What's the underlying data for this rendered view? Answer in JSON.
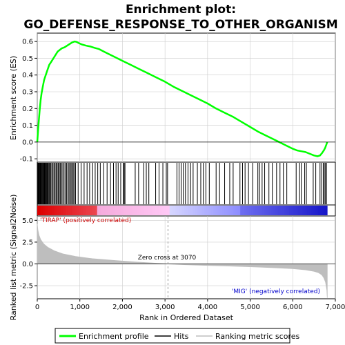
{
  "chart_data": {
    "type": "line",
    "title_line1": "Enrichment plot:",
    "title_line2": "GO_DEFENSE_RESPONSE_TO_OTHER_ORGANISM",
    "xlabel": "Rank in Ordered Dataset",
    "ylabel_top": "Enrichment score (ES)",
    "ylabel_bottom": "Ranked list metric (Signal2Noise)",
    "xlim": [
      0,
      7000
    ],
    "es_ylim": [
      -0.12,
      0.65
    ],
    "metric_ylim": [
      -4.0,
      5.5
    ],
    "x_ticks": [
      0,
      1000,
      2000,
      3000,
      4000,
      5000,
      6000,
      7000
    ],
    "x_tick_labels": [
      "0",
      "1,000",
      "2,000",
      "3,000",
      "4,000",
      "5,000",
      "6,000",
      "7,000"
    ],
    "es_ticks": [
      0.6,
      0.5,
      0.4,
      0.3,
      0.2,
      0.1,
      0.0,
      -0.1
    ],
    "es_tick_labels": [
      "0.6",
      "0.5",
      "0.4",
      "0.3",
      "0.2",
      "0.1",
      "0.0",
      "-0.1"
    ],
    "metric_ticks": [
      5.0,
      2.5,
      0.0,
      -2.5
    ],
    "metric_tick_labels": [
      "5.0",
      "2.5",
      "0.0",
      "-2.5"
    ],
    "total_ranks": 6810,
    "zero_cross_rank": 3070,
    "series": [
      {
        "name": "Enrichment profile",
        "color": "#00ff00",
        "x": [
          0,
          20,
          40,
          60,
          80,
          100,
          130,
          160,
          200,
          240,
          280,
          330,
          380,
          430,
          480,
          530,
          580,
          640,
          700,
          760,
          820,
          880,
          920,
          980,
          1050,
          1150,
          1250,
          1350,
          1450,
          1600,
          1800,
          2000,
          2200,
          2400,
          2600,
          2800,
          3000,
          3200,
          3400,
          3600,
          3800,
          4000,
          4200,
          4400,
          4600,
          4800,
          5000,
          5200,
          5400,
          5600,
          5800,
          6000,
          6100,
          6200,
          6300,
          6400,
          6500,
          6580,
          6640,
          6690,
          6730,
          6760,
          6790,
          6810
        ],
        "y": [
          0.0,
          0.07,
          0.14,
          0.2,
          0.25,
          0.29,
          0.33,
          0.37,
          0.4,
          0.43,
          0.46,
          0.48,
          0.5,
          0.52,
          0.54,
          0.55,
          0.56,
          0.565,
          0.575,
          0.585,
          0.595,
          0.6,
          0.598,
          0.59,
          0.582,
          0.575,
          0.57,
          0.562,
          0.555,
          0.535,
          0.51,
          0.485,
          0.46,
          0.435,
          0.41,
          0.385,
          0.36,
          0.33,
          0.305,
          0.28,
          0.255,
          0.23,
          0.2,
          0.175,
          0.15,
          0.12,
          0.09,
          0.06,
          0.035,
          0.01,
          -0.015,
          -0.04,
          -0.05,
          -0.055,
          -0.06,
          -0.07,
          -0.08,
          -0.085,
          -0.08,
          -0.065,
          -0.05,
          -0.035,
          -0.015,
          0.0
        ]
      },
      {
        "name": "Ranking metric scores",
        "color": "#bebebe",
        "x": [
          0,
          15,
          40,
          80,
          150,
          250,
          400,
          600,
          900,
          1300,
          1800,
          2300,
          2800,
          3070,
          3500,
          4000,
          4500,
          5000,
          5500,
          6000,
          6300,
          6500,
          6600,
          6680,
          6730,
          6770,
          6800,
          6810
        ],
        "y": [
          4.6,
          3.9,
          3.3,
          2.8,
          2.3,
          1.9,
          1.5,
          1.15,
          0.85,
          0.6,
          0.4,
          0.22,
          0.08,
          0.0,
          -0.1,
          -0.18,
          -0.25,
          -0.33,
          -0.42,
          -0.55,
          -0.68,
          -0.85,
          -1.0,
          -1.25,
          -1.6,
          -2.1,
          -3.0,
          -3.9
        ]
      }
    ],
    "hits": [
      5,
      18,
      30,
      42,
      55,
      68,
      80,
      95,
      110,
      125,
      140,
      155,
      170,
      185,
      200,
      215,
      230,
      245,
      260,
      280,
      300,
      320,
      345,
      370,
      395,
      420,
      445,
      470,
      495,
      520,
      545,
      570,
      600,
      630,
      660,
      690,
      720,
      745,
      770,
      795,
      820,
      845,
      870,
      900,
      960,
      1030,
      1100,
      1170,
      1230,
      1300,
      1360,
      1420,
      1480,
      1560,
      1640,
      1720,
      1790,
      1850,
      1900,
      1960,
      2020,
      2040,
      2060,
      2300,
      2380,
      2500,
      2560,
      2620,
      2780,
      2860,
      2950,
      3030,
      3060,
      3280,
      3330,
      3380,
      3430,
      3480,
      3540,
      3600,
      3660,
      3760,
      3840,
      3900,
      3960,
      4040,
      4200,
      4280,
      4400,
      4520,
      4600,
      4760,
      4820,
      4880,
      4960,
      5060,
      5180,
      5220,
      5280,
      5340,
      5440,
      5520,
      5620,
      5700,
      5780,
      5860,
      6080,
      6160,
      6200,
      6280,
      6320,
      6480,
      6540,
      6640,
      6680,
      6720,
      6740,
      6770,
      6790
    ],
    "annotations": {
      "positive_label": "'TIRAP' (positively correlated)",
      "negative_label": "'MIG' (negatively correlated)",
      "zero_cross_label": "Zero cross at 3070"
    },
    "legend": {
      "placement": "bottom",
      "items": [
        {
          "label": "Enrichment profile",
          "color": "#00ff00",
          "kind": "thick-line"
        },
        {
          "label": "Hits",
          "color": "#000000",
          "kind": "line"
        },
        {
          "label": "Ranking metric scores",
          "color": "#bebebe",
          "kind": "line"
        }
      ]
    },
    "colors": {
      "positive_strong": "#dd0000",
      "positive_light": "#ffc0f0",
      "negative_light": "#c0c0ff",
      "negative_strong": "#0000dd",
      "positive_label_color": "#cc0000",
      "negative_label_color": "#0000cc",
      "grid": "#cccccc"
    }
  }
}
